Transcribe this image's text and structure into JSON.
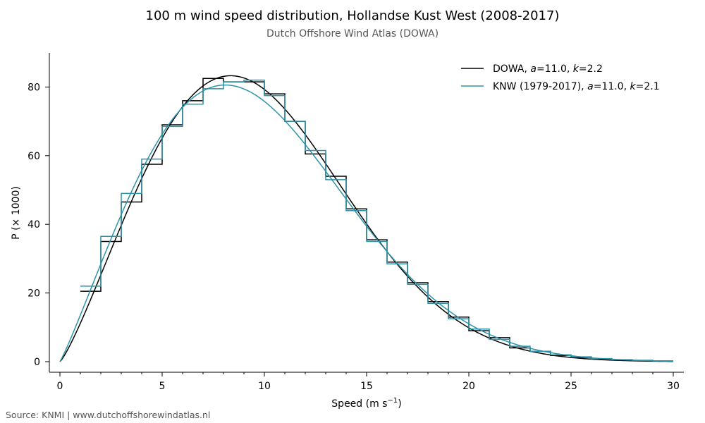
{
  "header": {
    "title": "100 m wind speed distribution, Hollandse Kust West (2008-2017)",
    "subtitle": "Dutch Offshore Wind Atlas (DOWA)"
  },
  "footer": {
    "source": "Source: KNMI | www.dutchoffshorewindatlas.nl"
  },
  "chart_data": {
    "type": "line",
    "title": "100 m wind speed distribution, Hollandse Kust West (2008-2017)",
    "subtitle": "Dutch Offshore Wind Atlas (DOWA)",
    "xlabel": "Speed (m s⁻¹)",
    "ylabel": "P (× 1000)",
    "xlim": [
      0,
      30
    ],
    "ylim": [
      0,
      90
    ],
    "x_ticks": [
      0,
      5,
      10,
      15,
      20,
      25,
      30
    ],
    "y_ticks": [
      0,
      20,
      40,
      60,
      80
    ],
    "grid": false,
    "legend_position": "top-right",
    "series": [
      {
        "name": "DOWA, a=11.0, k=2.2",
        "legend": {
          "prefix": "DOWA, ",
          "a": "11.0",
          "k": "2.2"
        },
        "color": "#000000",
        "weibull": {
          "a": 11.0,
          "k": 2.2
        },
        "histogram": {
          "bins": [
            [
              1,
              2
            ],
            [
              2,
              3
            ],
            [
              3,
              4
            ],
            [
              4,
              5
            ],
            [
              5,
              6
            ],
            [
              6,
              7
            ],
            [
              7,
              8
            ],
            [
              8,
              9
            ],
            [
              9,
              10
            ],
            [
              10,
              11
            ],
            [
              11,
              12
            ],
            [
              12,
              13
            ],
            [
              13,
              14
            ],
            [
              14,
              15
            ],
            [
              15,
              16
            ],
            [
              16,
              17
            ],
            [
              17,
              18
            ],
            [
              18,
              19
            ],
            [
              19,
              20
            ],
            [
              20,
              21
            ],
            [
              21,
              22
            ],
            [
              22,
              23
            ],
            [
              23,
              24
            ],
            [
              24,
              25
            ],
            [
              25,
              26
            ],
            [
              26,
              27
            ],
            [
              27,
              28
            ],
            [
              28,
              29
            ],
            [
              29,
              30
            ]
          ],
          "values": [
            20.5,
            35.0,
            46.5,
            57.5,
            69.0,
            76.0,
            82.5,
            81.5,
            81.5,
            78.0,
            70.0,
            60.5,
            54.0,
            44.5,
            35.5,
            29.0,
            23.0,
            17.5,
            13.0,
            9.0,
            7.0,
            4.0,
            3.0,
            1.8,
            1.2,
            0.8,
            0.5,
            0.3,
            0.2
          ]
        }
      },
      {
        "name": "KNW (1979-2017), a=11.0, k=2.1",
        "legend": {
          "prefix": "KNW (1979-2017), ",
          "a": "11.0",
          "k": "2.1"
        },
        "color": "#2b93aa",
        "weibull": {
          "a": 11.0,
          "k": 2.1
        },
        "histogram": {
          "bins": [
            [
              1,
              2
            ],
            [
              2,
              3
            ],
            [
              3,
              4
            ],
            [
              4,
              5
            ],
            [
              5,
              6
            ],
            [
              6,
              7
            ],
            [
              7,
              8
            ],
            [
              8,
              9
            ],
            [
              9,
              10
            ],
            [
              10,
              11
            ],
            [
              11,
              12
            ],
            [
              12,
              13
            ],
            [
              13,
              14
            ],
            [
              14,
              15
            ],
            [
              15,
              16
            ],
            [
              16,
              17
            ],
            [
              17,
              18
            ],
            [
              18,
              19
            ],
            [
              19,
              20
            ],
            [
              20,
              21
            ],
            [
              21,
              22
            ],
            [
              22,
              23
            ],
            [
              23,
              24
            ],
            [
              24,
              25
            ],
            [
              25,
              26
            ],
            [
              26,
              27
            ],
            [
              27,
              28
            ],
            [
              28,
              29
            ],
            [
              29,
              30
            ]
          ],
          "values": [
            22.0,
            36.5,
            49.0,
            59.0,
            68.5,
            75.0,
            79.5,
            81.5,
            82.0,
            77.5,
            70.0,
            61.5,
            53.0,
            44.0,
            35.0,
            28.5,
            22.5,
            17.0,
            12.5,
            9.5,
            6.5,
            4.5,
            3.0,
            2.0,
            1.4,
            0.9,
            0.6,
            0.4,
            0.2
          ]
        }
      }
    ]
  }
}
